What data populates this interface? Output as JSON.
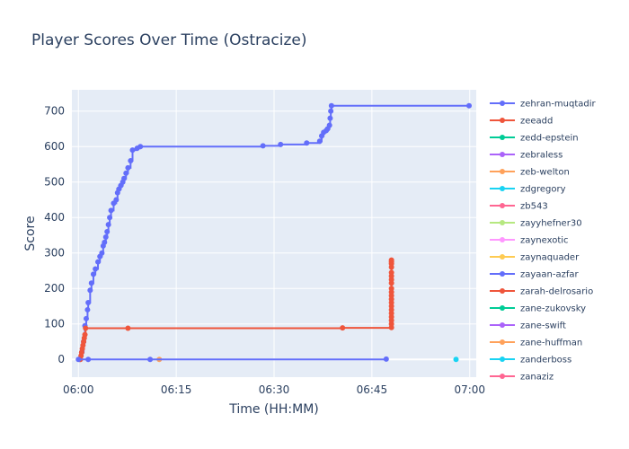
{
  "chart_data": {
    "type": "line",
    "title": "Player Scores Over Time (Ostracize)",
    "xlabel": "Time (HH:MM)",
    "ylabel": "Score",
    "x_ticks": [
      "06:00",
      "06:15",
      "06:30",
      "06:45",
      "07:00"
    ],
    "x_range_minutes": [
      -1,
      61
    ],
    "y_ticks": [
      0,
      100,
      200,
      300,
      400,
      500,
      600,
      700
    ],
    "ylim": [
      -50,
      760
    ],
    "grid": true,
    "legend_position": "right",
    "series": [
      {
        "name": "zehran-muqtadir",
        "color": "#636efa",
        "x_minutes": [
          0.2,
          0.5,
          0.8,
          1.0,
          1.2,
          1.4,
          1.5,
          1.8,
          2.0,
          2.3,
          2.6,
          3.0,
          3.3,
          3.6,
          3.8,
          4.0,
          4.2,
          4.4,
          4.6,
          4.8,
          5.0,
          5.4,
          5.8,
          6.0,
          6.2,
          6.5,
          6.8,
          7.0,
          7.3,
          7.6,
          8.0,
          8.3,
          9.0,
          9.5,
          28.3,
          31.0,
          35.0,
          37.0,
          37.3,
          37.6,
          38.0,
          38.2,
          38.5,
          38.6,
          38.7,
          38.8,
          59.9
        ],
        "values": [
          0,
          20,
          50,
          95,
          115,
          140,
          160,
          195,
          215,
          240,
          255,
          275,
          290,
          300,
          320,
          330,
          345,
          360,
          380,
          400,
          420,
          440,
          450,
          470,
          480,
          490,
          500,
          510,
          525,
          540,
          560,
          590,
          595,
          600,
          602,
          606,
          610,
          615,
          630,
          640,
          645,
          650,
          660,
          680,
          700,
          715,
          715
        ]
      },
      {
        "name": "zeeadd",
        "color": "#ef553b",
        "x_minutes": [
          0.3,
          0.4,
          0.5,
          0.6,
          0.7,
          0.8,
          0.9,
          1.0,
          1.1,
          7.6,
          40.5,
          48.0,
          48.0,
          48.0,
          48.0,
          48.0,
          48.0,
          48.0,
          48.0,
          48.0,
          48.0,
          48.0,
          48.0,
          48.0,
          48.0,
          48.0,
          48.0,
          48.0,
          48.0,
          48.0,
          48.0
        ],
        "values": [
          0,
          10,
          20,
          30,
          40,
          50,
          60,
          70,
          88,
          88,
          89,
          90,
          100,
          110,
          120,
          130,
          140,
          150,
          160,
          170,
          180,
          190,
          200,
          215,
          225,
          235,
          245,
          260,
          270,
          275,
          280
        ]
      },
      {
        "name": "zedd-epstein",
        "color": "#00cc96",
        "x_minutes": [],
        "values": []
      },
      {
        "name": "zebraless",
        "color": "#ab63fa",
        "x_minutes": [],
        "values": []
      },
      {
        "name": "zeb-welton",
        "color": "#ffa15a",
        "x_minutes": [
          12.4
        ],
        "values": [
          0
        ]
      },
      {
        "name": "zdgregory",
        "color": "#19d3f3",
        "x_minutes": [
          57.9
        ],
        "values": [
          0
        ]
      },
      {
        "name": "zb543",
        "color": "#ff6692",
        "x_minutes": [],
        "values": []
      },
      {
        "name": "zayyhefner30",
        "color": "#b6e880",
        "x_minutes": [],
        "values": []
      },
      {
        "name": "zaynexotic",
        "color": "#ff97ff",
        "x_minutes": [],
        "values": []
      },
      {
        "name": "zaynaquader",
        "color": "#fecb52",
        "x_minutes": [],
        "values": []
      },
      {
        "name": "zayaan-azfar",
        "color": "#636efa",
        "x_minutes": [
          0.0,
          1.5,
          11.0,
          47.2
        ],
        "values": [
          0,
          0,
          0,
          1
        ]
      },
      {
        "name": "zarah-delrosario",
        "color": "#ef553b",
        "x_minutes": [],
        "values": []
      },
      {
        "name": "zane-zukovsky",
        "color": "#00cc96",
        "x_minutes": [],
        "values": []
      },
      {
        "name": "zane-swift",
        "color": "#ab63fa",
        "x_minutes": [],
        "values": []
      },
      {
        "name": "zane-huffman",
        "color": "#ffa15a",
        "x_minutes": [],
        "values": []
      },
      {
        "name": "zanderboss",
        "color": "#19d3f3",
        "x_minutes": [],
        "values": []
      },
      {
        "name": "zanaziz",
        "color": "#ff6692",
        "x_minutes": [],
        "values": []
      }
    ]
  }
}
